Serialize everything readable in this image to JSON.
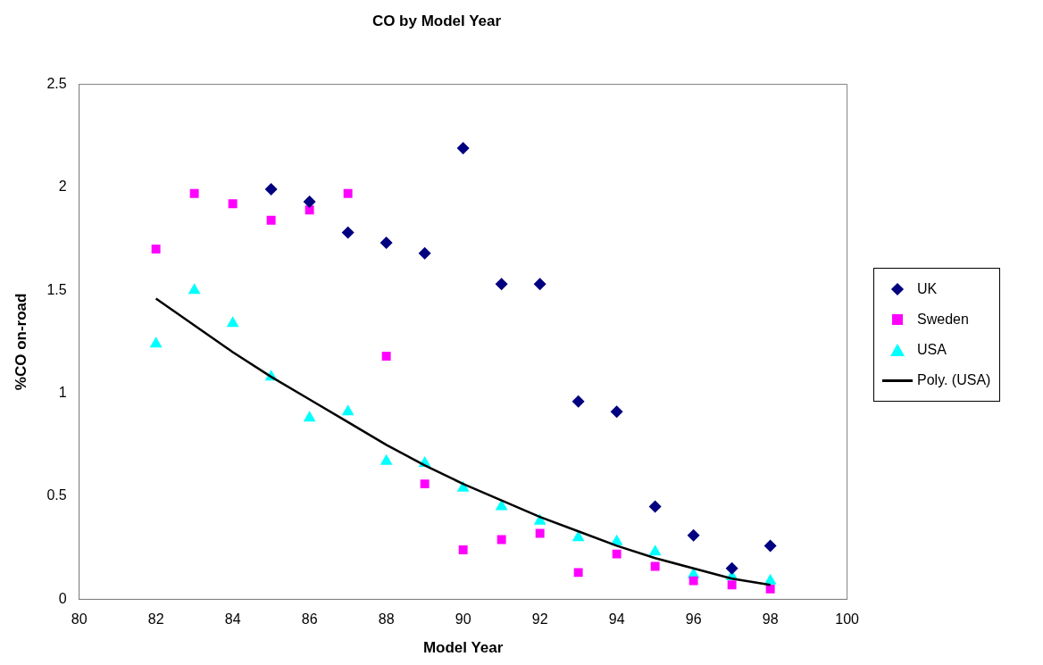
{
  "chart_data": {
    "type": "scatter",
    "title": "CO by Model Year",
    "xlabel": "Model Year",
    "ylabel": "%CO on-road",
    "xlim": [
      80,
      100
    ],
    "xticks": [
      80,
      82,
      84,
      86,
      88,
      90,
      92,
      94,
      96,
      98,
      100
    ],
    "ylim": [
      0,
      2.5
    ],
    "yticks": [
      0,
      0.5,
      1,
      1.5,
      2,
      2.5
    ],
    "grid": false,
    "legend": "right",
    "series": [
      {
        "name": "UK",
        "color": "#000080",
        "marker": "diamond",
        "x": [
          85,
          86,
          87,
          88,
          89,
          90,
          91,
          92,
          93,
          94,
          95,
          96,
          97,
          98
        ],
        "values": [
          1.99,
          1.93,
          1.78,
          1.73,
          1.68,
          2.19,
          1.53,
          1.53,
          0.96,
          0.91,
          0.45,
          0.31,
          0.15,
          0.26
        ]
      },
      {
        "name": "Sweden",
        "color": "#ff00ff",
        "marker": "square",
        "x": [
          82,
          83,
          84,
          85,
          86,
          87,
          88,
          89,
          90,
          91,
          92,
          93,
          94,
          95,
          96,
          97,
          98
        ],
        "values": [
          1.7,
          1.97,
          1.92,
          1.84,
          1.89,
          1.97,
          1.18,
          0.56,
          0.24,
          0.29,
          0.32,
          0.13,
          0.22,
          0.16,
          0.09,
          0.07,
          0.05
        ]
      },
      {
        "name": "USA",
        "color": "#00ffff",
        "marker": "triangle",
        "x": [
          82,
          83,
          84,
          85,
          86,
          87,
          88,
          89,
          90,
          91,
          92,
          93,
          94,
          95,
          96,
          97,
          98
        ],
        "values": [
          1.24,
          1.5,
          1.34,
          1.08,
          0.88,
          0.91,
          0.67,
          0.66,
          0.54,
          0.45,
          0.38,
          0.3,
          0.28,
          0.23,
          0.12,
          0.11,
          0.09
        ]
      },
      {
        "name": "Poly. (USA)",
        "type": "line",
        "color": "#000000",
        "marker": "none",
        "line_style": "solid",
        "x": [
          82,
          83,
          84,
          85,
          86,
          87,
          88,
          89,
          90,
          91,
          92,
          93,
          94,
          95,
          96,
          97,
          98
        ],
        "values": [
          1.46,
          1.33,
          1.2,
          1.08,
          0.97,
          0.86,
          0.75,
          0.65,
          0.56,
          0.48,
          0.4,
          0.33,
          0.26,
          0.2,
          0.15,
          0.1,
          0.07
        ]
      }
    ]
  }
}
